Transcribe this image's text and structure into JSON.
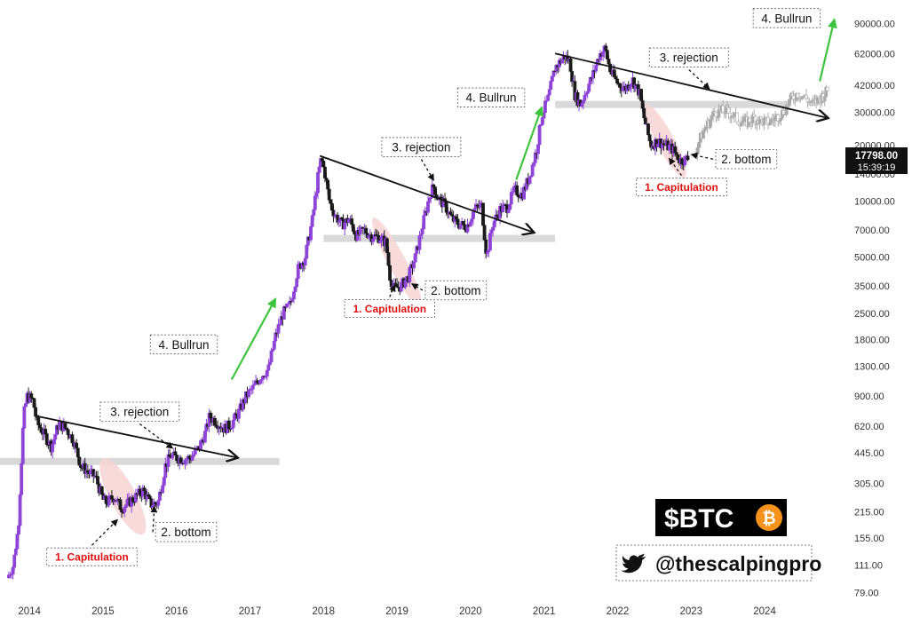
{
  "chart_data": {
    "type": "candlestick",
    "symbol_label": "$BTC",
    "symbol_icon": "bitcoin-icon",
    "twitter_handle": "@thescalpingpro",
    "twitter_icon": "twitter-bird-icon",
    "y_scale": "log",
    "ylim": [
      72,
      115000
    ],
    "xlim": [
      2013.6,
      2025.05
    ],
    "x_ticks": [
      "2014",
      "2015",
      "2016",
      "2017",
      "2018",
      "2019",
      "2020",
      "2021",
      "2022",
      "2023",
      "2024"
    ],
    "y_ticks": [
      "90000.00",
      "62000.00",
      "42000.00",
      "30000.00",
      "20000.00",
      "14000.00",
      "10000.00",
      "7000.00",
      "5000.00",
      "3500.00",
      "2500.00",
      "1800.00",
      "1300.00",
      "900.00",
      "620.00",
      "445.00",
      "305.00",
      "215.00",
      "155.00",
      "111.00",
      "79.00"
    ],
    "price_label": {
      "value": "17798.00",
      "time": "15:39:19"
    },
    "colors": {
      "up": "#8e44d6",
      "down": "#1a1a1a",
      "projection": "#aaaaaa",
      "support": "#d9d9d9",
      "capitulation_zone": "#f8d3d3",
      "bullrun_arrow": "#3ec43e",
      "capitulation_text": "#e01010"
    },
    "price_path": [
      [
        2013.7,
        95
      ],
      [
        2013.78,
        110
      ],
      [
        2013.85,
        180
      ],
      [
        2013.92,
        700
      ],
      [
        2013.97,
        900
      ],
      [
        2014.05,
        850
      ],
      [
        2014.1,
        650
      ],
      [
        2014.2,
        560
      ],
      [
        2014.3,
        480
      ],
      [
        2014.4,
        640
      ],
      [
        2014.5,
        600
      ],
      [
        2014.6,
        520
      ],
      [
        2014.7,
        380
      ],
      [
        2014.8,
        350
      ],
      [
        2014.9,
        330
      ],
      [
        2015.0,
        250
      ],
      [
        2015.05,
        240
      ],
      [
        2015.15,
        260
      ],
      [
        2015.25,
        225
      ],
      [
        2015.35,
        240
      ],
      [
        2015.45,
        260
      ],
      [
        2015.55,
        280
      ],
      [
        2015.65,
        235
      ],
      [
        2015.75,
        240
      ],
      [
        2015.85,
        380
      ],
      [
        2015.92,
        430
      ],
      [
        2016.0,
        420
      ],
      [
        2016.1,
        410
      ],
      [
        2016.2,
        420
      ],
      [
        2016.3,
        470
      ],
      [
        2016.4,
        580
      ],
      [
        2016.45,
        700
      ],
      [
        2016.55,
        650
      ],
      [
        2016.65,
        600
      ],
      [
        2016.75,
        640
      ],
      [
        2016.85,
        740
      ],
      [
        2016.95,
        900
      ],
      [
        2017.05,
        1000
      ],
      [
        2017.15,
        1150
      ],
      [
        2017.25,
        1250
      ],
      [
        2017.35,
        1900
      ],
      [
        2017.45,
        2500
      ],
      [
        2017.55,
        2800
      ],
      [
        2017.65,
        4300
      ],
      [
        2017.75,
        5000
      ],
      [
        2017.85,
        8000
      ],
      [
        2017.93,
        14000
      ],
      [
        2017.97,
        17000
      ],
      [
        2018.02,
        14000
      ],
      [
        2018.08,
        10000
      ],
      [
        2018.15,
        8500
      ],
      [
        2018.25,
        7500
      ],
      [
        2018.35,
        8000
      ],
      [
        2018.45,
        6500
      ],
      [
        2018.55,
        7000
      ],
      [
        2018.65,
        6500
      ],
      [
        2018.75,
        6400
      ],
      [
        2018.85,
        6000
      ],
      [
        2018.9,
        4000
      ],
      [
        2018.95,
        3400
      ],
      [
        2019.05,
        3500
      ],
      [
        2019.15,
        3900
      ],
      [
        2019.25,
        5000
      ],
      [
        2019.35,
        7500
      ],
      [
        2019.45,
        11000
      ],
      [
        2019.5,
        12000
      ],
      [
        2019.55,
        10500
      ],
      [
        2019.65,
        9500
      ],
      [
        2019.75,
        8000
      ],
      [
        2019.85,
        7500
      ],
      [
        2019.95,
        7300
      ],
      [
        2020.05,
        9000
      ],
      [
        2020.15,
        9500
      ],
      [
        2020.22,
        5000
      ],
      [
        2020.3,
        7500
      ],
      [
        2020.4,
        9000
      ],
      [
        2020.5,
        9300
      ],
      [
        2020.6,
        11500
      ],
      [
        2020.7,
        10800
      ],
      [
        2020.8,
        13500
      ],
      [
        2020.9,
        19000
      ],
      [
        2020.97,
        29000
      ],
      [
        2021.05,
        35000
      ],
      [
        2021.15,
        52000
      ],
      [
        2021.28,
        60000
      ],
      [
        2021.35,
        56000
      ],
      [
        2021.42,
        37000
      ],
      [
        2021.5,
        33000
      ],
      [
        2021.58,
        40000
      ],
      [
        2021.66,
        47000
      ],
      [
        2021.75,
        61000
      ],
      [
        2021.83,
        66000
      ],
      [
        2021.9,
        50000
      ],
      [
        2022.0,
        43000
      ],
      [
        2022.1,
        40000
      ],
      [
        2022.2,
        45000
      ],
      [
        2022.3,
        38000
      ],
      [
        2022.35,
        29000
      ],
      [
        2022.45,
        20000
      ],
      [
        2022.55,
        21000
      ],
      [
        2022.65,
        20000
      ],
      [
        2022.75,
        19000
      ],
      [
        2022.85,
        16500
      ],
      [
        2022.97,
        17000
      ]
    ],
    "projection_path": [
      [
        2023.05,
        18000
      ],
      [
        2023.15,
        23000
      ],
      [
        2023.25,
        27000
      ],
      [
        2023.32,
        30000
      ],
      [
        2023.45,
        30500
      ],
      [
        2023.55,
        29500
      ],
      [
        2023.65,
        27000
      ],
      [
        2023.75,
        26500
      ],
      [
        2023.85,
        28000
      ],
      [
        2023.95,
        27000
      ],
      [
        2024.05,
        26500
      ],
      [
        2024.15,
        28000
      ],
      [
        2024.25,
        30000
      ],
      [
        2024.35,
        35000
      ],
      [
        2024.45,
        38000
      ],
      [
        2024.55,
        36000
      ],
      [
        2024.65,
        33000
      ],
      [
        2024.72,
        35000
      ],
      [
        2024.8,
        37000
      ],
      [
        2024.87,
        40000
      ]
    ],
    "trendlines": [
      {
        "from": [
          2014.1,
          700
        ],
        "to": [
          2016.82,
          420
        ]
      },
      {
        "from": [
          2017.95,
          17500
        ],
        "to": [
          2020.85,
          6800
        ]
      },
      {
        "from": [
          2021.15,
          62000
        ],
        "to": [
          2024.85,
          28000
        ]
      }
    ],
    "support_bands": [
      {
        "from": 2013.6,
        "to": 2017.4,
        "price": 400
      },
      {
        "from": 2018.0,
        "to": 2021.15,
        "price": 6300
      },
      {
        "from": 2021.15,
        "to": 2024.3,
        "price": 33000
      }
    ],
    "capitulation_zones": [
      {
        "center": [
          2015.27,
          260
        ],
        "rx_years": 0.32,
        "half_decades": 0.23
      },
      {
        "center": [
          2019.0,
          4700
        ],
        "rx_years": 0.22,
        "half_decades": 0.27
      },
      {
        "center": [
          2022.65,
          21000
        ],
        "rx_years": 0.22,
        "half_decades": 0.22
      }
    ],
    "bullrun_arrows": [
      {
        "from": [
          2016.75,
          1100
        ],
        "to": [
          2017.35,
          3000
        ]
      },
      {
        "from": [
          2020.62,
          13000
        ],
        "to": [
          2020.97,
          32000
        ]
      },
      {
        "from": [
          2024.75,
          44000
        ],
        "to": [
          2024.95,
          95000
        ]
      }
    ],
    "annotations": [
      {
        "text": "1. Capitulation",
        "at": [
          2014.85,
          123
        ],
        "kind": "capitulation",
        "arrow_to": [
          2015.2,
          195
        ]
      },
      {
        "text": "2. bottom",
        "at": [
          2016.13,
          167
        ],
        "kind": "label",
        "arrow_to": [
          2015.7,
          230
        ]
      },
      {
        "text": "3. rejection",
        "at": [
          2015.5,
          740
        ],
        "kind": "label",
        "arrow_to": [
          2015.95,
          470
        ]
      },
      {
        "text": "4. Bullrun",
        "at": [
          2016.1,
          1700
        ],
        "kind": "label"
      },
      {
        "text": "1. Capitulation",
        "at": [
          2018.9,
          2650
        ],
        "kind": "capitulation",
        "arrow_to": [
          2018.97,
          3550
        ]
      },
      {
        "text": "2. bottom",
        "at": [
          2019.8,
          3320
        ],
        "kind": "label",
        "arrow_to": [
          2019.2,
          3600
        ]
      },
      {
        "text": "3. rejection",
        "at": [
          2019.33,
          19500
        ],
        "kind": "label",
        "arrow_to": [
          2019.5,
          12900
        ]
      },
      {
        "text": "4. Bullrun",
        "at": [
          2020.28,
          36000
        ],
        "kind": "label"
      },
      {
        "text": "1. Capitulation",
        "at": [
          2022.87,
          11900
        ],
        "kind": "capitulation",
        "arrow_to": [
          2022.7,
          17000
        ]
      },
      {
        "text": "2. bottom",
        "at": [
          2023.75,
          16800
        ],
        "kind": "label",
        "arrow_to": [
          2023.0,
          17800
        ]
      },
      {
        "text": "3. rejection",
        "at": [
          2022.97,
          59000
        ],
        "kind": "label",
        "arrow_to": [
          2023.25,
          40000
        ]
      },
      {
        "text": "4. Bullrun",
        "at": [
          2024.3,
          96000
        ],
        "kind": "label"
      }
    ]
  }
}
